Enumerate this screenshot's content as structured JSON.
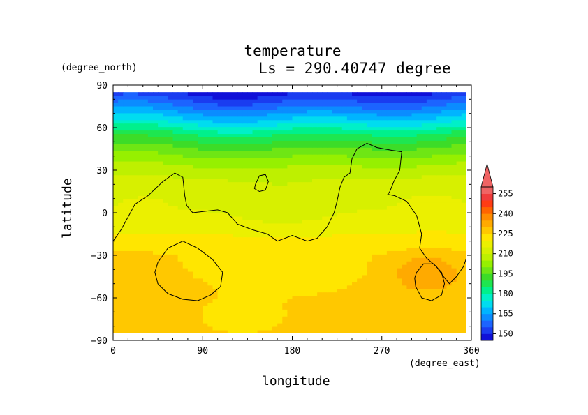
{
  "chart_data": {
    "type": "heatmap",
    "title": "temperature",
    "subtitle": "Ls = 290.40747 degree",
    "xlabel": "longitude",
    "ylabel": "latitude",
    "x_unit": "(degree_east)",
    "y_unit": "(degree_north)",
    "xlim": [
      0,
      360
    ],
    "ylim": [
      -90,
      90
    ],
    "x_ticks": [
      0,
      90,
      180,
      270,
      360
    ],
    "y_ticks": [
      -90,
      -60,
      -30,
      0,
      30,
      60,
      90
    ],
    "x_tick_labels": [
      "0",
      "90",
      "180",
      "270",
      "360"
    ],
    "y_tick_labels": [
      "−90",
      "−60",
      "−30",
      "0",
      "30",
      "60",
      "90"
    ],
    "colorbar": {
      "levels": [
        145,
        150,
        155,
        160,
        165,
        170,
        175,
        180,
        185,
        190,
        195,
        200,
        205,
        210,
        215,
        220,
        225,
        230,
        235,
        240,
        245,
        250,
        255,
        260
      ],
      "colors": [
        "#1010d8",
        "#1a3cf0",
        "#1c64ff",
        "#0b8cff",
        "#00b4ff",
        "#00dcf0",
        "#00f0c8",
        "#00f08c",
        "#1ee650",
        "#3cdc28",
        "#6ee614",
        "#96f000",
        "#bef000",
        "#d7f000",
        "#ebf000",
        "#ffe600",
        "#ffc800",
        "#ffaa00",
        "#ff8c00",
        "#ff6400",
        "#ff3c14",
        "#f03c3c",
        "#f06464"
      ],
      "tick_labels": [
        "150",
        "165",
        "180",
        "195",
        "210",
        "225",
        "240",
        "255"
      ],
      "extend": "max"
    },
    "zonal_profile": [
      {
        "lat": 84,
        "value": 150
      },
      {
        "lat": 75,
        "value": 160
      },
      {
        "lat": 65,
        "value": 172
      },
      {
        "lat": 55,
        "value": 186
      },
      {
        "lat": 45,
        "value": 196
      },
      {
        "lat": 35,
        "value": 204
      },
      {
        "lat": 25,
        "value": 210
      },
      {
        "lat": 10,
        "value": 214
      },
      {
        "lat": -5,
        "value": 216
      },
      {
        "lat": -15,
        "value": 220
      },
      {
        "lat": -30,
        "value": 225
      },
      {
        "lat": -50,
        "value": 226
      },
      {
        "lat": -70,
        "value": 226
      },
      {
        "lat": -84,
        "value": 226
      }
    ],
    "contours": [
      {
        "name": "continent",
        "points": [
          [
            0,
            -20
          ],
          [
            8,
            -12
          ],
          [
            15,
            -3
          ],
          [
            22,
            6
          ],
          [
            35,
            12
          ],
          [
            50,
            22
          ],
          [
            62,
            28
          ],
          [
            70,
            25
          ],
          [
            72,
            12
          ],
          [
            74,
            5
          ],
          [
            80,
            0
          ],
          [
            92,
            1
          ],
          [
            105,
            2
          ],
          [
            115,
            0
          ],
          [
            125,
            -8
          ],
          [
            140,
            -12
          ],
          [
            155,
            -15
          ],
          [
            165,
            -20
          ],
          [
            180,
            -16
          ],
          [
            195,
            -20
          ],
          [
            205,
            -18
          ],
          [
            215,
            -10
          ],
          [
            222,
            0
          ],
          [
            225,
            8
          ],
          [
            228,
            18
          ],
          [
            232,
            25
          ],
          [
            238,
            28
          ],
          [
            240,
            38
          ],
          [
            245,
            45
          ],
          [
            255,
            49
          ],
          [
            265,
            46
          ],
          [
            280,
            44
          ],
          [
            290,
            43
          ],
          [
            288,
            30
          ],
          [
            282,
            22
          ],
          [
            278,
            15
          ],
          [
            276,
            13
          ],
          [
            283,
            12
          ],
          [
            295,
            8
          ],
          [
            305,
            -2
          ],
          [
            310,
            -15
          ],
          [
            308,
            -25
          ],
          [
            315,
            -32
          ],
          [
            325,
            -38
          ],
          [
            332,
            -45
          ],
          [
            338,
            -50
          ],
          [
            345,
            -45
          ],
          [
            352,
            -38
          ],
          [
            360,
            -22
          ]
        ]
      },
      {
        "name": "ridge",
        "points": [
          [
            0,
            -20
          ],
          [
            0,
            -20
          ]
        ]
      },
      {
        "name": "hellas",
        "points": [
          [
            45,
            -35
          ],
          [
            55,
            -25
          ],
          [
            70,
            -20
          ],
          [
            85,
            -25
          ],
          [
            100,
            -33
          ],
          [
            110,
            -42
          ],
          [
            108,
            -52
          ],
          [
            98,
            -58
          ],
          [
            85,
            -62
          ],
          [
            70,
            -61
          ],
          [
            55,
            -57
          ],
          [
            45,
            -50
          ],
          [
            42,
            -42
          ],
          [
            45,
            -35
          ]
        ]
      },
      {
        "name": "argyre",
        "points": [
          [
            305,
            -42
          ],
          [
            312,
            -36
          ],
          [
            322,
            -36
          ],
          [
            330,
            -42
          ],
          [
            333,
            -50
          ],
          [
            330,
            -58
          ],
          [
            320,
            -62
          ],
          [
            310,
            -60
          ],
          [
            304,
            -52
          ],
          [
            303,
            -46
          ],
          [
            305,
            -42
          ]
        ]
      },
      {
        "name": "olympus",
        "points": [
          [
            143,
            20
          ],
          [
            147,
            26
          ],
          [
            153,
            27
          ],
          [
            156,
            22
          ],
          [
            153,
            16
          ],
          [
            147,
            15
          ],
          [
            142,
            17
          ],
          [
            143,
            20
          ]
        ]
      }
    ]
  }
}
